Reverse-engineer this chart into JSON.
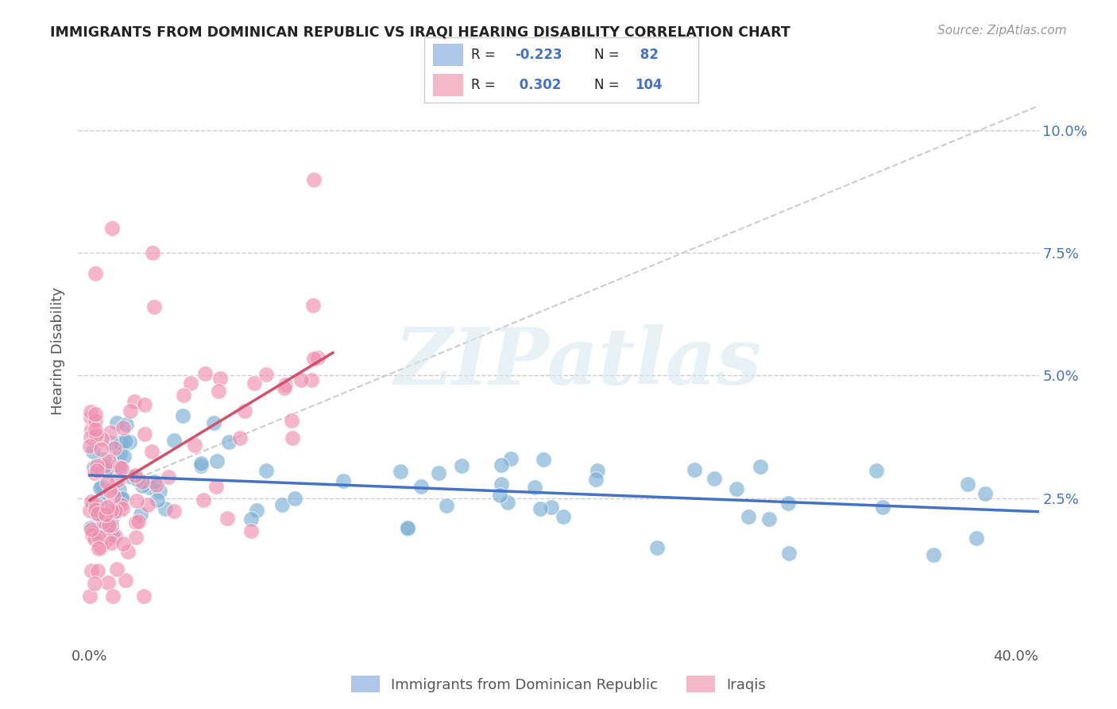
{
  "title": "IMMIGRANTS FROM DOMINICAN REPUBLIC VS IRAQI HEARING DISABILITY CORRELATION CHART",
  "source": "Source: ZipAtlas.com",
  "ylabel": "Hearing Disability",
  "watermark": "ZIPatlas",
  "xlim": [
    0.0,
    0.41
  ],
  "ylim": [
    -0.005,
    0.115
  ],
  "x_ticks": [
    0.0,
    0.1,
    0.2,
    0.3,
    0.4
  ],
  "x_tick_labels": [
    "0.0%",
    "",
    "",
    "",
    "40.0%"
  ],
  "y_ticks": [
    0.025,
    0.05,
    0.075,
    0.1
  ],
  "y_tick_labels": [
    "2.5%",
    "5.0%",
    "7.5%",
    "10.0%"
  ],
  "legend_r1": "-0.223",
  "legend_n1": "82",
  "legend_r2": "0.302",
  "legend_n2": "104",
  "bg_color": "#ffffff",
  "grid_color": "#cccccc",
  "blue_dot_color": "#7aafd4",
  "pink_dot_color": "#f090b0",
  "blue_line_color": "#4472c4",
  "pink_line_color": "#d4516e",
  "dashed_line_color": "#cccccc",
  "blue_legend_color": "#aec6e8",
  "pink_legend_color": "#f4b8c8",
  "bottom_legend": [
    {
      "label": "Immigrants from Dominican Republic",
      "color": "#aec6e8"
    },
    {
      "label": "Iraqis",
      "color": "#f4b8c8"
    }
  ]
}
